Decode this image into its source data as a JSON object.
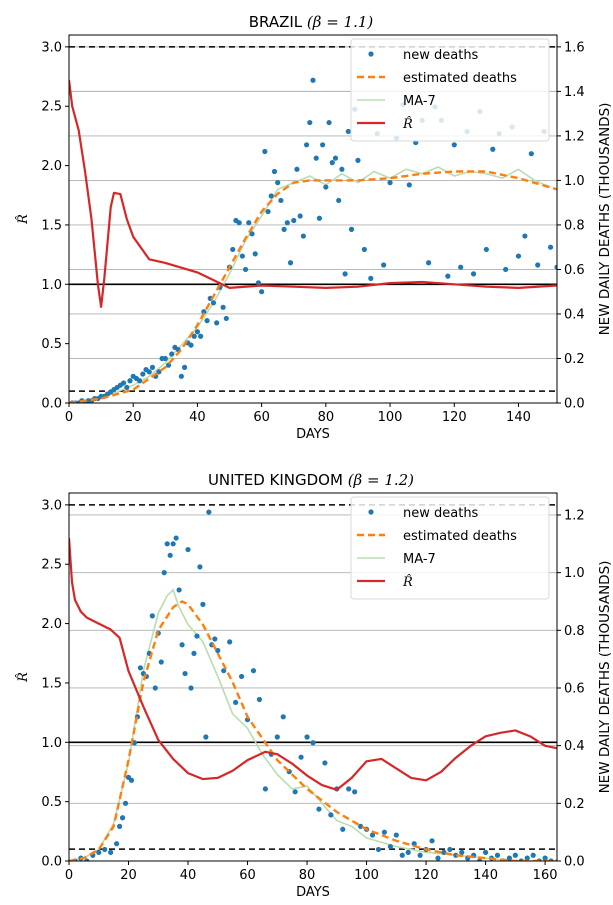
{
  "chart_data": [
    {
      "type": "line",
      "title_text": "BRAZIL",
      "title_math": "(β = 1.1)",
      "xlabel": "DAYS",
      "ylabel_left": "R̂",
      "ylabel_right": "NEW DAILY DEATHS (THOUSANDS)",
      "xlim": [
        0,
        152
      ],
      "ylim_left": [
        0,
        3.1
      ],
      "ylim_right": [
        0,
        1.6533
      ],
      "xticks": [
        0,
        20,
        40,
        60,
        80,
        100,
        120,
        140
      ],
      "yticks_left": [
        0.0,
        0.5,
        1.0,
        1.5,
        2.0,
        2.5,
        3.0
      ],
      "yticks_right": [
        0.0,
        0.2,
        0.4,
        0.6,
        0.8,
        1.0,
        1.2,
        1.4,
        1.6
      ],
      "hlines_left": [
        {
          "y": 3.0,
          "style": "dashed"
        },
        {
          "y": 0.1,
          "style": "dashed"
        },
        {
          "y": 1.0,
          "style": "solid"
        }
      ],
      "grid": "horizontal, right axis",
      "legend": "top-right",
      "colors": {
        "new_deaths": "#1f77b4",
        "estimated": "#ff7f0e",
        "ma7": "#b9ddb0",
        "rhat": "#d62728"
      },
      "series": [
        {
          "name": "new deaths",
          "axis": "right",
          "kind": "scatter",
          "x": [
            1,
            2,
            3,
            4,
            5,
            6,
            7,
            8,
            9,
            10,
            11,
            12,
            13,
            14,
            15,
            16,
            17,
            18,
            19,
            20,
            21,
            22,
            23,
            24,
            25,
            26,
            27,
            28,
            29,
            30,
            31,
            32,
            33,
            34,
            35,
            36,
            37,
            38,
            39,
            40,
            41,
            42,
            43,
            44,
            45,
            46,
            47,
            48,
            49,
            50,
            51,
            52,
            53,
            54,
            55,
            56,
            57,
            58,
            59,
            60,
            61,
            62,
            63,
            64,
            65,
            66,
            67,
            68,
            69,
            70,
            71,
            72,
            73,
            74,
            75,
            76,
            77,
            78,
            79,
            80,
            81,
            82,
            83,
            84,
            85,
            86,
            87,
            88,
            89,
            90,
            92,
            94,
            96,
            98,
            100,
            102,
            104,
            106,
            108,
            110,
            112,
            114,
            116,
            118,
            120,
            122,
            124,
            126,
            128,
            130,
            132,
            134,
            136,
            138,
            140,
            142,
            144,
            146,
            148,
            150,
            152
          ],
          "y": [
            0.0,
            0.0,
            0.0,
            0.01,
            0.0,
            0.01,
            0.01,
            0.02,
            0.02,
            0.03,
            0.03,
            0.04,
            0.05,
            0.06,
            0.07,
            0.08,
            0.09,
            0.07,
            0.1,
            0.12,
            0.11,
            0.1,
            0.13,
            0.15,
            0.14,
            0.16,
            0.12,
            0.14,
            0.2,
            0.2,
            0.17,
            0.22,
            0.25,
            0.24,
            0.12,
            0.16,
            0.27,
            0.26,
            0.3,
            0.32,
            0.3,
            0.41,
            0.37,
            0.47,
            0.45,
            0.36,
            0.52,
            0.43,
            0.38,
            0.61,
            0.69,
            0.82,
            0.81,
            0.66,
            0.6,
            0.81,
            0.76,
            0.67,
            0.54,
            0.5,
            1.13,
            0.86,
            0.93,
            1.04,
            0.99,
            0.91,
            0.78,
            0.81,
            0.63,
            0.82,
            1.05,
            0.84,
            0.75,
            1.16,
            1.26,
            1.45,
            1.1,
            0.83,
            1.16,
            0.97,
            1.26,
            1.08,
            1.1,
            0.91,
            1.05,
            0.58,
            1.22,
            0.78,
            1.32,
            1.09,
            0.69,
            0.56,
            1.21,
            0.62,
            0.99,
            1.19,
            1.34,
            0.98,
            1.17,
            1.27,
            0.63,
            1.33,
            1.27,
            0.57,
            1.16,
            0.61,
            1.22,
            0.58,
            1.31,
            0.69,
            1.14,
            1.21,
            0.6,
            1.24,
            0.66,
            0.75,
            1.12,
            0.62,
            1.22,
            0.7,
            0.61
          ]
        },
        {
          "name": "estimated deaths",
          "axis": "right",
          "kind": "line",
          "x": [
            0,
            10,
            20,
            30,
            35,
            40,
            45,
            50,
            55,
            60,
            65,
            70,
            75,
            80,
            90,
            100,
            110,
            120,
            125,
            130,
            140,
            152
          ],
          "y": [
            0.0,
            0.02,
            0.06,
            0.16,
            0.24,
            0.35,
            0.48,
            0.61,
            0.74,
            0.86,
            0.94,
            0.99,
            1.0,
            1.0,
            1.0,
            1.01,
            1.03,
            1.04,
            1.04,
            1.04,
            1.01,
            0.96
          ]
        },
        {
          "name": "MA-7",
          "axis": "right",
          "kind": "line",
          "x": [
            0,
            5,
            10,
            15,
            20,
            25,
            30,
            35,
            40,
            45,
            50,
            55,
            60,
            65,
            70,
            75,
            80,
            85,
            90,
            95,
            100,
            105,
            110,
            115,
            120,
            125,
            130,
            135,
            140,
            145,
            150
          ],
          "y": [
            0.0,
            0.01,
            0.02,
            0.05,
            0.08,
            0.12,
            0.18,
            0.26,
            0.34,
            0.45,
            0.58,
            0.73,
            0.84,
            0.96,
            0.99,
            1.02,
            0.98,
            1.03,
            0.99,
            1.04,
            1.01,
            1.05,
            1.03,
            1.06,
            1.02,
            1.04,
            1.03,
            1.01,
            1.05,
            1.0,
            0.97
          ]
        },
        {
          "name": "R̂",
          "axis": "left",
          "kind": "line",
          "x": [
            0,
            1,
            3,
            5,
            7,
            9,
            10,
            11,
            12,
            13,
            14,
            16,
            18,
            20,
            25,
            30,
            40,
            50,
            60,
            70,
            80,
            90,
            100,
            110,
            120,
            130,
            140,
            152
          ],
          "y": [
            2.72,
            2.5,
            2.3,
            1.95,
            1.55,
            1.0,
            0.81,
            1.05,
            1.35,
            1.65,
            1.77,
            1.76,
            1.55,
            1.4,
            1.21,
            1.18,
            1.1,
            0.97,
            0.99,
            0.98,
            0.97,
            0.98,
            1.01,
            1.02,
            1.0,
            0.98,
            0.97,
            0.99
          ]
        }
      ]
    },
    {
      "type": "line",
      "title_text": "UNITED KINGDOM",
      "title_math": "(β = 1.2)",
      "xlabel": "DAYS",
      "ylabel_left": "R̂",
      "ylabel_right": "NEW DAILY DEATHS (THOUSANDS)",
      "xlim": [
        0,
        164
      ],
      "ylim_left": [
        0,
        3.1
      ],
      "ylim_right": [
        0,
        1.2762
      ],
      "xticks": [
        0,
        20,
        40,
        60,
        80,
        100,
        120,
        140,
        160
      ],
      "yticks_left": [
        0.0,
        0.5,
        1.0,
        1.5,
        2.0,
        2.5,
        3.0
      ],
      "yticks_right": [
        0.0,
        0.2,
        0.4,
        0.6,
        0.8,
        1.0,
        1.2
      ],
      "hlines_left": [
        {
          "y": 3.0,
          "style": "dashed"
        },
        {
          "y": 0.1,
          "style": "dashed"
        },
        {
          "y": 1.0,
          "style": "solid"
        }
      ],
      "grid": "horizontal, right axis",
      "legend": "top-right",
      "colors": {
        "new_deaths": "#1f77b4",
        "estimated": "#ff7f0e",
        "ma7": "#b9ddb0",
        "rhat": "#d62728"
      },
      "series": [
        {
          "name": "new deaths",
          "axis": "right",
          "kind": "scatter",
          "x": [
            2,
            4,
            6,
            8,
            10,
            12,
            14,
            16,
            17,
            18,
            19,
            20,
            21,
            22,
            23,
            24,
            25,
            26,
            27,
            28,
            29,
            30,
            31,
            32,
            33,
            34,
            35,
            36,
            37,
            38,
            39,
            40,
            41,
            42,
            43,
            44,
            45,
            46,
            47,
            48,
            49,
            50,
            52,
            54,
            56,
            58,
            60,
            62,
            64,
            66,
            68,
            70,
            72,
            74,
            76,
            78,
            80,
            82,
            84,
            86,
            88,
            90,
            92,
            94,
            96,
            98,
            100,
            102,
            104,
            106,
            108,
            110,
            112,
            114,
            116,
            118,
            120,
            122,
            124,
            126,
            128,
            130,
            132,
            134,
            136,
            138,
            140,
            142,
            144,
            146,
            148,
            150,
            152,
            154,
            156,
            158,
            160,
            162
          ],
          "y": [
            0.0,
            0.01,
            0.0,
            0.02,
            0.03,
            0.04,
            0.03,
            0.06,
            0.12,
            0.15,
            0.2,
            0.29,
            0.28,
            0.41,
            0.5,
            0.67,
            0.65,
            0.64,
            0.72,
            0.85,
            0.6,
            0.79,
            0.69,
            1.0,
            1.1,
            1.06,
            1.1,
            1.12,
            0.94,
            0.75,
            0.65,
            1.08,
            0.6,
            0.72,
            0.78,
            1.02,
            0.89,
            0.43,
            1.21,
            0.75,
            0.77,
            0.73,
            0.66,
            0.76,
            0.55,
            0.64,
            0.49,
            0.66,
            0.56,
            0.25,
            0.37,
            0.43,
            0.5,
            0.31,
            0.24,
            0.36,
            0.43,
            0.41,
            0.18,
            0.34,
            0.16,
            0.25,
            0.11,
            0.25,
            0.24,
            0.12,
            0.11,
            0.09,
            0.04,
            0.1,
            0.05,
            0.09,
            0.02,
            0.03,
            0.06,
            0.02,
            0.04,
            0.07,
            0.01,
            0.03,
            0.04,
            0.02,
            0.03,
            0.01,
            0.02,
            0.0,
            0.03,
            0.01,
            0.02,
            0.0,
            0.01,
            0.02,
            0.0,
            0.01,
            0.02,
            0.0,
            0.01,
            0.0
          ]
        },
        {
          "name": "estimated deaths",
          "axis": "right",
          "kind": "line",
          "x": [
            0,
            5,
            10,
            15,
            20,
            25,
            30,
            35,
            38,
            40,
            45,
            50,
            55,
            60,
            70,
            80,
            90,
            100,
            110,
            120,
            130,
            140,
            150,
            164
          ],
          "y": [
            0.0,
            0.01,
            0.04,
            0.12,
            0.35,
            0.62,
            0.8,
            0.88,
            0.9,
            0.89,
            0.82,
            0.72,
            0.62,
            0.5,
            0.35,
            0.25,
            0.17,
            0.11,
            0.07,
            0.04,
            0.02,
            0.01,
            0.0,
            0.0
          ]
        },
        {
          "name": "MA-7",
          "axis": "right",
          "kind": "line",
          "x": [
            0,
            5,
            10,
            15,
            20,
            25,
            30,
            33,
            35,
            37,
            40,
            45,
            50,
            55,
            60,
            65,
            70,
            75,
            80,
            85,
            90,
            95,
            100,
            110,
            120,
            130,
            140,
            150,
            164
          ],
          "y": [
            0.0,
            0.01,
            0.04,
            0.13,
            0.34,
            0.66,
            0.86,
            0.92,
            0.94,
            0.88,
            0.82,
            0.76,
            0.64,
            0.51,
            0.46,
            0.37,
            0.3,
            0.25,
            0.26,
            0.2,
            0.14,
            0.12,
            0.08,
            0.05,
            0.03,
            0.02,
            0.01,
            0.0,
            0.0
          ]
        },
        {
          "name": "R̂",
          "axis": "left",
          "kind": "line",
          "x": [
            0,
            1,
            2,
            4,
            6,
            10,
            14,
            17,
            20,
            25,
            30,
            35,
            40,
            45,
            50,
            55,
            60,
            66,
            70,
            75,
            80,
            85,
            90,
            95,
            100,
            105,
            110,
            115,
            120,
            125,
            130,
            135,
            140,
            145,
            150,
            155,
            160,
            164
          ],
          "y": [
            2.72,
            2.35,
            2.2,
            2.1,
            2.05,
            2.0,
            1.95,
            1.88,
            1.6,
            1.3,
            1.02,
            0.86,
            0.74,
            0.69,
            0.7,
            0.76,
            0.85,
            0.92,
            0.9,
            0.82,
            0.72,
            0.64,
            0.6,
            0.7,
            0.84,
            0.86,
            0.78,
            0.7,
            0.68,
            0.75,
            0.87,
            0.97,
            1.05,
            1.08,
            1.1,
            1.05,
            0.97,
            0.95
          ]
        }
      ]
    }
  ]
}
